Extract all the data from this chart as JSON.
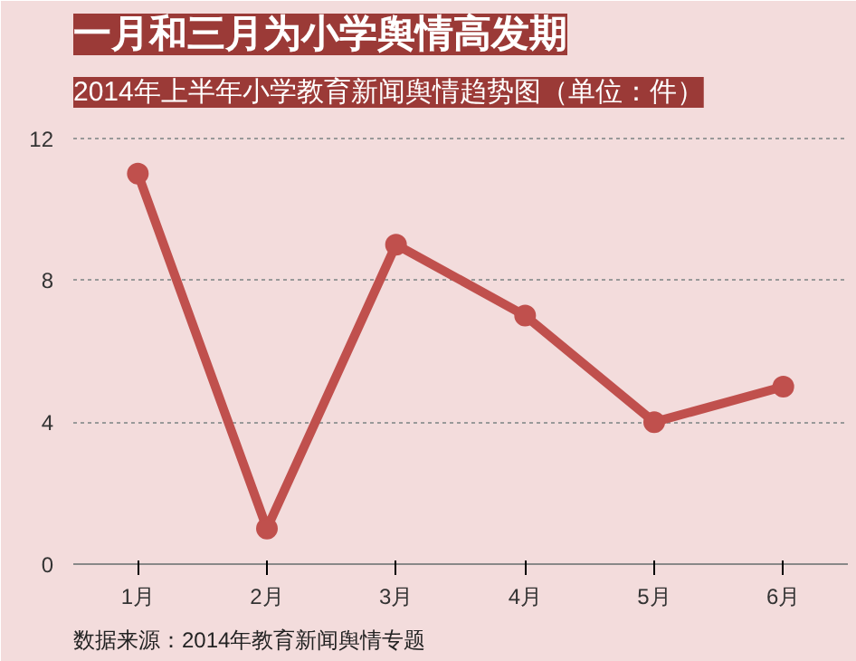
{
  "chart_data": {
    "type": "line",
    "title": "一月和三月为小学舆情高发期",
    "subtitle": "2014年上半年小学教育新闻舆情趋势图（单位：件）",
    "categories": [
      "1月",
      "2月",
      "3月",
      "4月",
      "5月",
      "6月"
    ],
    "series": [
      {
        "color": "#c0504d",
        "values": [
          11,
          1,
          9,
          7,
          4,
          5
        ]
      }
    ],
    "ylim": [
      0,
      12.6
    ],
    "yticks": [
      0,
      4,
      8,
      12
    ],
    "grid": "y",
    "marker": "circle",
    "line_style": "solid",
    "annotations": [
      "数据来源：2014年教育新闻舆情专题"
    ]
  }
}
